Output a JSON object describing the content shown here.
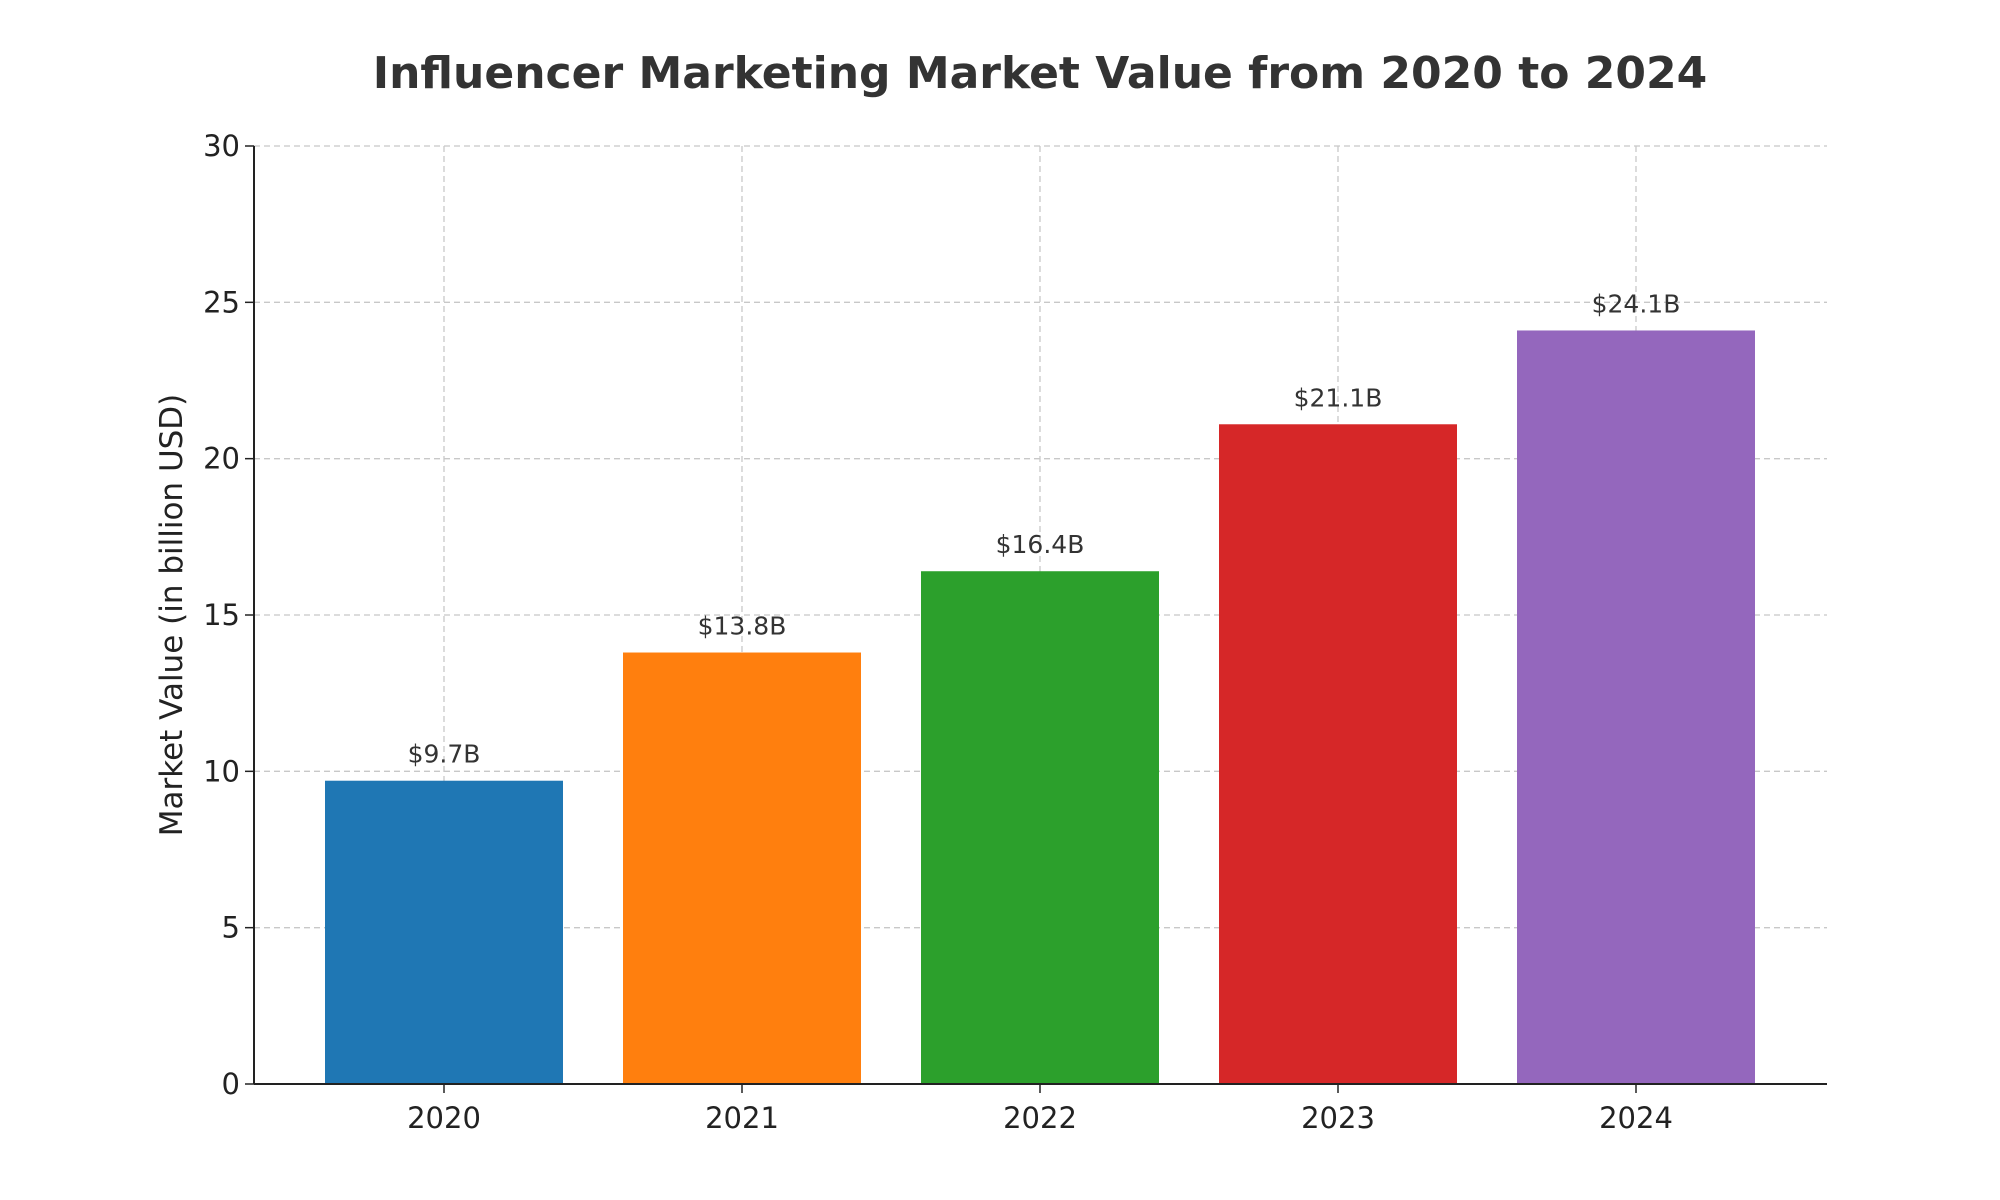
{
  "chart_data": {
    "type": "bar",
    "title": "Influencer Marketing Market Value from 2020 to 2024",
    "xlabel": "",
    "ylabel": "Market Value (in billion USD)",
    "categories": [
      "2020",
      "2021",
      "2022",
      "2023",
      "2024"
    ],
    "values": [
      9.7,
      13.8,
      16.4,
      21.1,
      24.1
    ],
    "data_labels": [
      "$9.7B",
      "$13.8B",
      "$16.4B",
      "$21.1B",
      "$24.1B"
    ],
    "colors": [
      "#1f77b4",
      "#ff7f0e",
      "#2ca02c",
      "#d62728",
      "#9467bd"
    ],
    "ylim": [
      0,
      30
    ],
    "yticks": [
      0,
      5,
      10,
      15,
      20,
      25,
      30
    ],
    "grid": true,
    "legend": "none"
  }
}
